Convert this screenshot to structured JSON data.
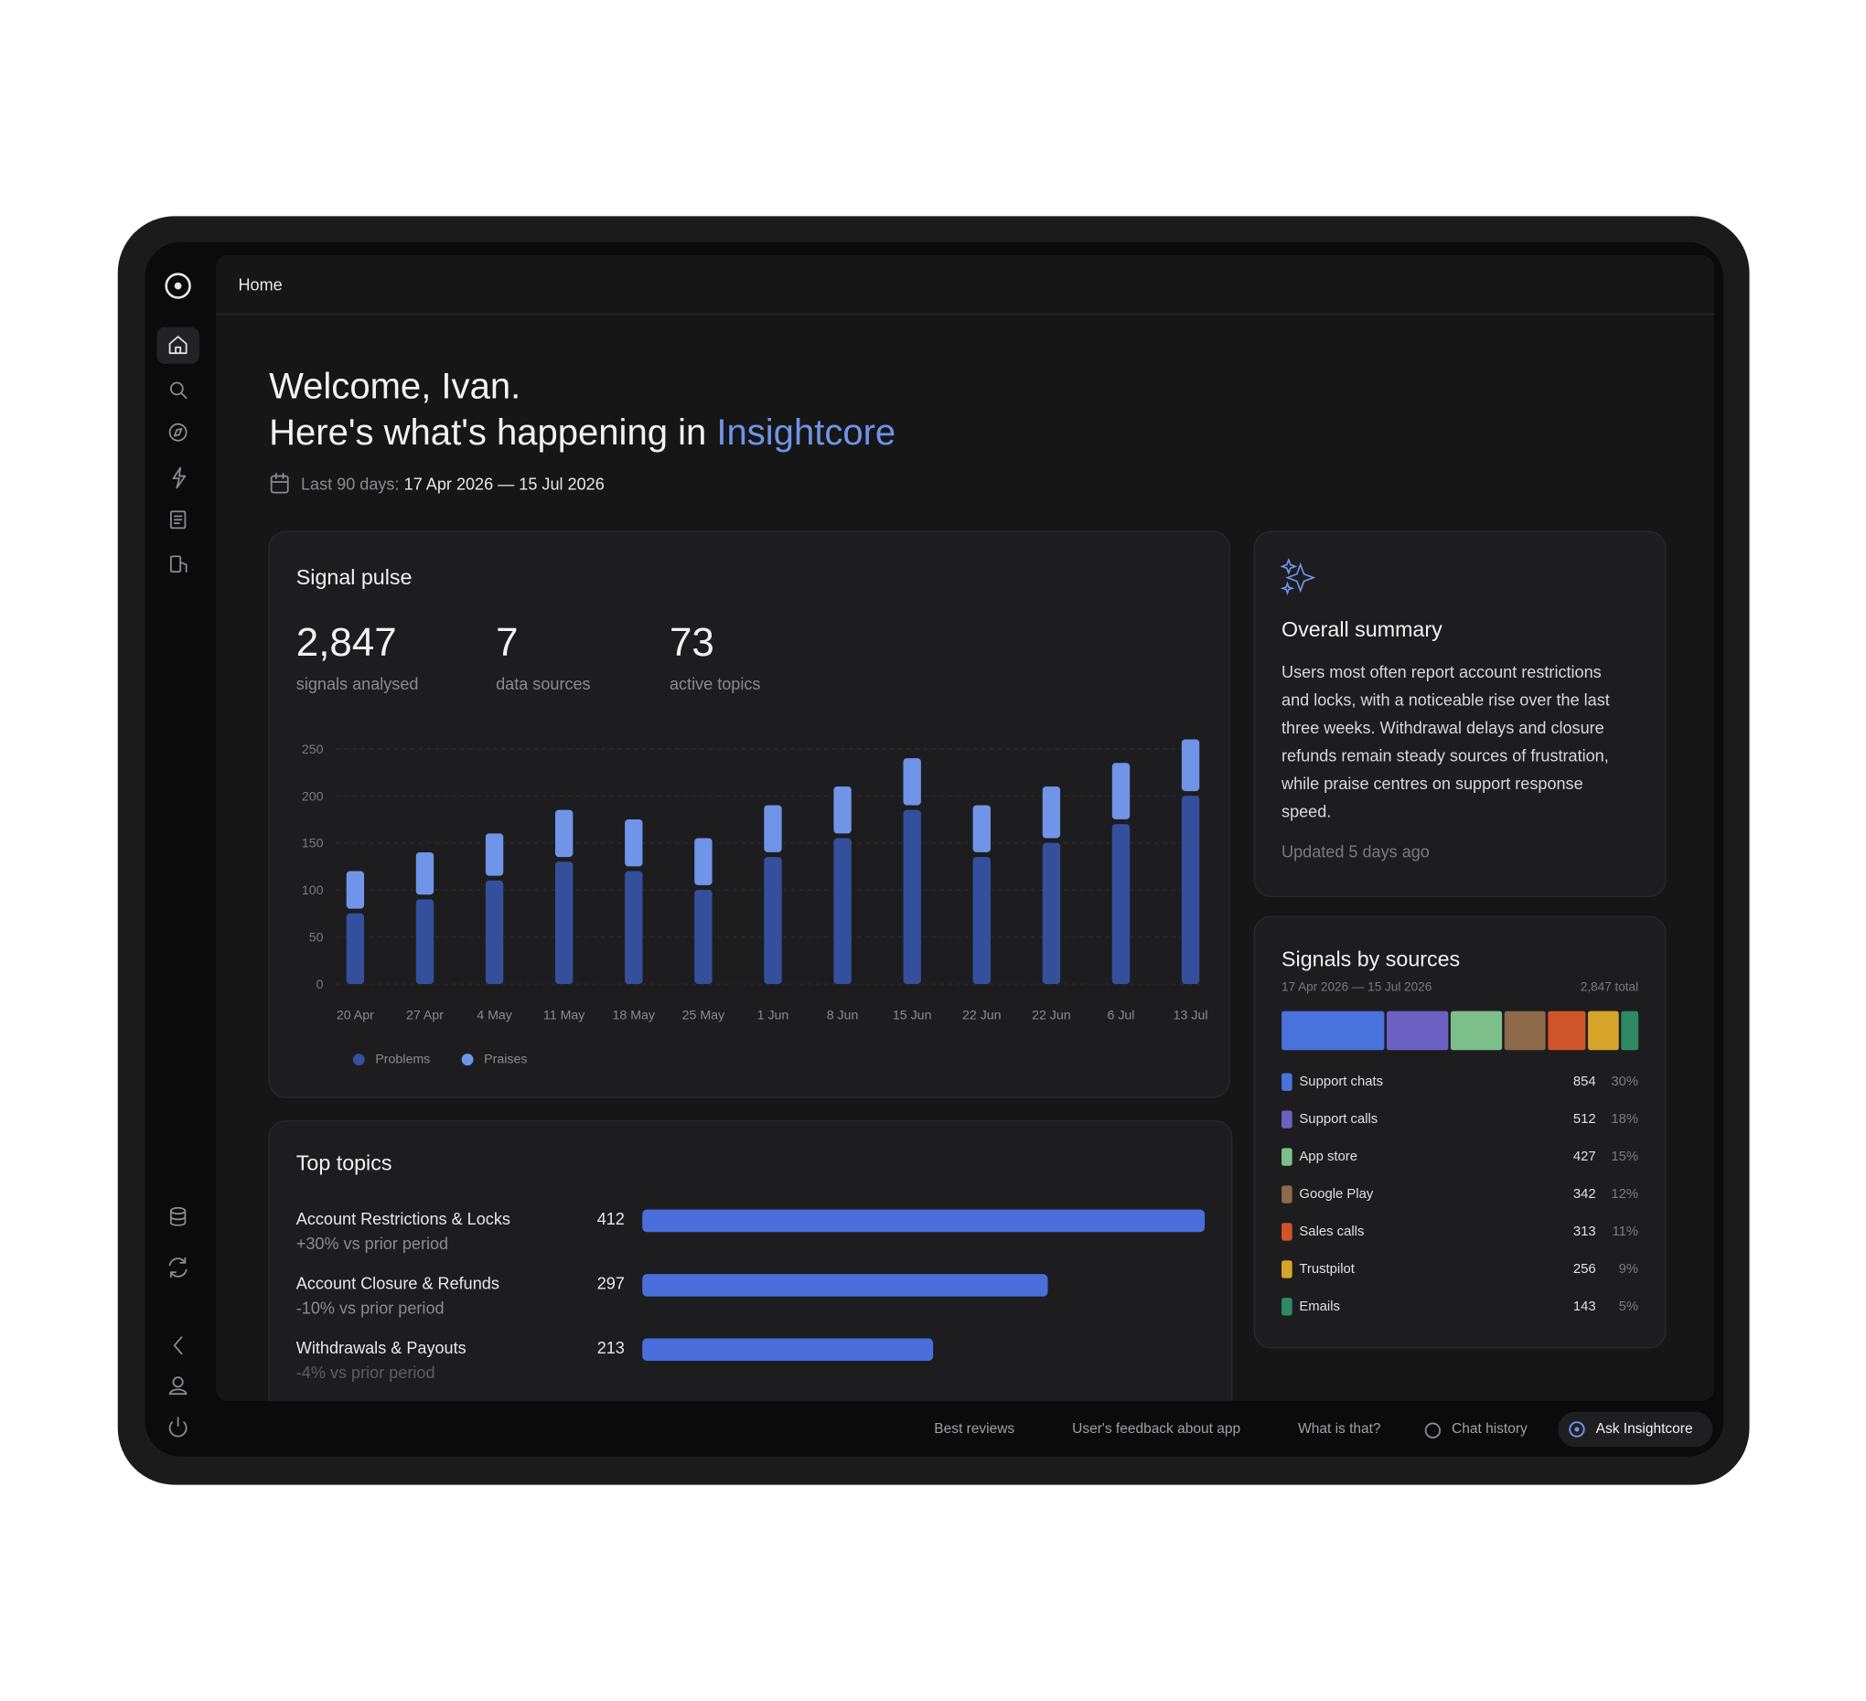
{
  "page": {
    "breadcrumb": "Home",
    "welcome": {
      "line1": "Welcome, Ivan.",
      "line2": "Here's what's happening in ",
      "brand": "Insightcore",
      "range_label": "Last 90 days:",
      "range": "17 Apr 2026 — 15 Jul 2026"
    },
    "stats": [
      {
        "value": "2,847",
        "label": "signals analysed"
      },
      {
        "value": "7",
        "label": "data sources"
      },
      {
        "value": "73",
        "label": "active topics"
      }
    ],
    "summary": {
      "title": "Overall summary",
      "lines": [
        "Users most often report account restrictions",
        "and locks, with a noticeable rise over the last",
        "three weeks. Withdrawal delays and closure",
        "refunds remain steady sources of frustration,",
        "while praise centres on support response",
        "speed."
      ],
      "updated": "Updated 5 days ago"
    },
    "footer": [
      "Best reviews",
      "User's feedback about app",
      "What is that?",
      "Chat history"
    ],
    "ask": "Ask Insightcore"
  },
  "chart_data": [
    {
      "type": "bar",
      "stacked": true,
      "title": "Signal pulse",
      "categories": [
        "20 Apr",
        "27 Apr",
        "4 May",
        "11 May",
        "18 May",
        "25 May",
        "1 Jun",
        "8 Jun",
        "15 Jun",
        "22 Jun",
        "22 Jun",
        "6 Jul",
        "13 Jul"
      ],
      "series": [
        {
          "name": "Problems",
          "color": "#34509c",
          "values": [
            75,
            90,
            110,
            130,
            120,
            100,
            135,
            155,
            185,
            135,
            150,
            170,
            200
          ]
        },
        {
          "name": "Praises",
          "color": "#6f94e8",
          "values": [
            45,
            50,
            50,
            55,
            55,
            55,
            55,
            55,
            55,
            55,
            60,
            65,
            60
          ]
        }
      ],
      "ylim": [
        0,
        275
      ],
      "yticks": [
        0,
        50,
        100,
        150,
        200,
        250
      ],
      "grid": true
    },
    {
      "type": "hbar",
      "title": "Top topics",
      "categories": [
        "Account Restrictions & Locks",
        "Account Closure & Refunds",
        "Withdrawals & Payouts"
      ],
      "notes": [
        "+30% vs prior period",
        "-10% vs prior period",
        "-4% vs prior period"
      ],
      "values": [
        412,
        297,
        213
      ],
      "color": "#4a6fdc"
    },
    {
      "type": "stacked_share",
      "title": "Signals by sources",
      "subtitle": "17 Apr 2026 — 15 Jul 2026",
      "total_label": "2,847 total",
      "categories": [
        "Support chats",
        "Support calls",
        "App store",
        "Google Play",
        "Sales calls",
        "Trustpilot",
        "Emails"
      ],
      "values": [
        854,
        512,
        427,
        342,
        313,
        256,
        143
      ],
      "shares": [
        {
          "value": 30,
          "label": "30%"
        },
        {
          "value": 18,
          "label": "18%"
        },
        {
          "value": 15,
          "label": "15%"
        },
        {
          "value": 12,
          "label": "12%"
        },
        {
          "value": 11,
          "label": "11%"
        },
        {
          "value": 9,
          "label": "9%"
        },
        {
          "value": 5,
          "label": "5%"
        }
      ],
      "colors": [
        "#4a72dc",
        "#6c60c2",
        "#7dbf8a",
        "#8c6a4a",
        "#d0542a",
        "#d6a429",
        "#2e8a64"
      ]
    }
  ]
}
